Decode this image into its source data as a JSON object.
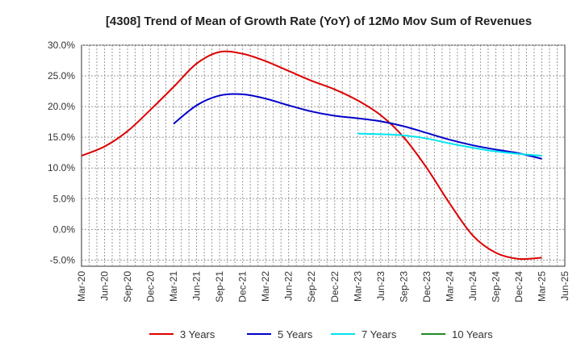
{
  "chart_data": {
    "type": "line",
    "title": "[4308]  Trend of Mean of Growth Rate (YoY) of 12Mo Mov Sum of Revenues",
    "xlabel": "",
    "ylabel": "",
    "ylim": [
      -6,
      30
    ],
    "yticks": [
      -5,
      0,
      5,
      10,
      15,
      20,
      25,
      30
    ],
    "ytick_labels": [
      "-5.0%",
      "0.0%",
      "5.0%",
      "10.0%",
      "15.0%",
      "20.0%",
      "25.0%",
      "30.0%"
    ],
    "x_labels": [
      "Mar-20",
      "Jun-20",
      "Sep-20",
      "Dec-20",
      "Mar-21",
      "Jun-21",
      "Sep-21",
      "Dec-21",
      "Mar-22",
      "Jun-22",
      "Sep-22",
      "Dec-22",
      "Mar-23",
      "Jun-23",
      "Sep-23",
      "Dec-23",
      "Mar-24",
      "Jun-24",
      "Sep-24",
      "Dec-24",
      "Mar-25",
      "Jun-25"
    ],
    "grid": true,
    "legend_position": "bottom",
    "series": [
      {
        "name": "3 Years",
        "color": "#dd0000",
        "values": [
          12.0,
          13.5,
          16.0,
          19.5,
          23.2,
          27.0,
          28.9,
          28.6,
          27.4,
          25.8,
          24.2,
          22.8,
          21.0,
          18.6,
          15.0,
          10.0,
          4.2,
          -1.0,
          -3.8,
          -4.8,
          -4.6,
          null
        ]
      },
      {
        "name": "5 Years",
        "color": "#0000cc",
        "values": [
          null,
          null,
          null,
          null,
          17.2,
          20.2,
          21.8,
          22.0,
          21.3,
          20.2,
          19.2,
          18.5,
          18.1,
          17.6,
          16.8,
          15.7,
          14.6,
          13.7,
          13.0,
          12.4,
          11.5,
          null
        ]
      },
      {
        "name": "7 Years",
        "color": "#00e5ee",
        "values": [
          null,
          null,
          null,
          null,
          null,
          null,
          null,
          null,
          null,
          null,
          null,
          null,
          15.6,
          15.5,
          15.3,
          14.8,
          14.0,
          13.3,
          12.7,
          12.3,
          12.0,
          null
        ]
      },
      {
        "name": "10 Years",
        "color": "#228b22",
        "values": [
          null,
          null,
          null,
          null,
          null,
          null,
          null,
          null,
          null,
          null,
          null,
          null,
          null,
          null,
          null,
          null,
          null,
          null,
          null,
          null,
          null,
          null
        ]
      }
    ]
  }
}
